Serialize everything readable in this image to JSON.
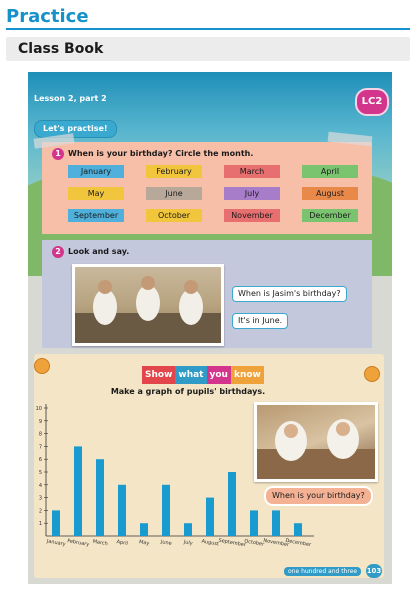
{
  "header": {
    "title": "Practice"
  },
  "subheader": {
    "title": "Class Book"
  },
  "page": {
    "lesson": "Lesson 2, part 2",
    "badge": "LC2",
    "practise_pill": "Let's practise!",
    "footer_text": "one hundred and three",
    "page_number": "103"
  },
  "activity1": {
    "number": "1",
    "question": "When is your birthday? Circle the month.",
    "months": [
      {
        "label": "January",
        "color": "#4fb0dc"
      },
      {
        "label": "February",
        "color": "#f2c63c"
      },
      {
        "label": "March",
        "color": "#e86f6f"
      },
      {
        "label": "April",
        "color": "#7ac46f"
      },
      {
        "label": "May",
        "color": "#f2c63c"
      },
      {
        "label": "June",
        "color": "#b8a89a"
      },
      {
        "label": "July",
        "color": "#a77cc9"
      },
      {
        "label": "August",
        "color": "#e8894a"
      },
      {
        "label": "September",
        "color": "#4fb0dc"
      },
      {
        "label": "October",
        "color": "#f2c63c"
      },
      {
        "label": "November",
        "color": "#e86f6f"
      },
      {
        "label": "December",
        "color": "#7ac46f"
      }
    ]
  },
  "activity2": {
    "number": "2",
    "instruction": "Look and say.",
    "question": "When is Jasim's birthday?",
    "answer": "It's in June."
  },
  "board": {
    "banner": [
      {
        "text": "Show",
        "color": "#e2454a"
      },
      {
        "text": "what",
        "color": "#2f9bc6"
      },
      {
        "text": "you",
        "color": "#d2358b"
      },
      {
        "text": "know",
        "color": "#f0a23a"
      }
    ],
    "graph_title": "Make a graph of pupils' birthdays.",
    "speech": "When is your birthday?"
  },
  "chart_data": {
    "type": "bar",
    "title": "",
    "xlabel": "",
    "ylabel": "",
    "ylim": [
      0,
      10
    ],
    "yticks": [
      "1",
      "2",
      "3",
      "4",
      "5",
      "6",
      "7",
      "8",
      "9",
      "10"
    ],
    "categories": [
      "January",
      "February",
      "March",
      "April",
      "May",
      "June",
      "July",
      "August",
      "September",
      "October",
      "November",
      "December"
    ],
    "values": [
      2,
      7,
      6,
      4,
      1,
      4,
      1,
      3,
      5,
      2,
      2,
      1
    ],
    "bar_color": "#1a9bd0"
  }
}
